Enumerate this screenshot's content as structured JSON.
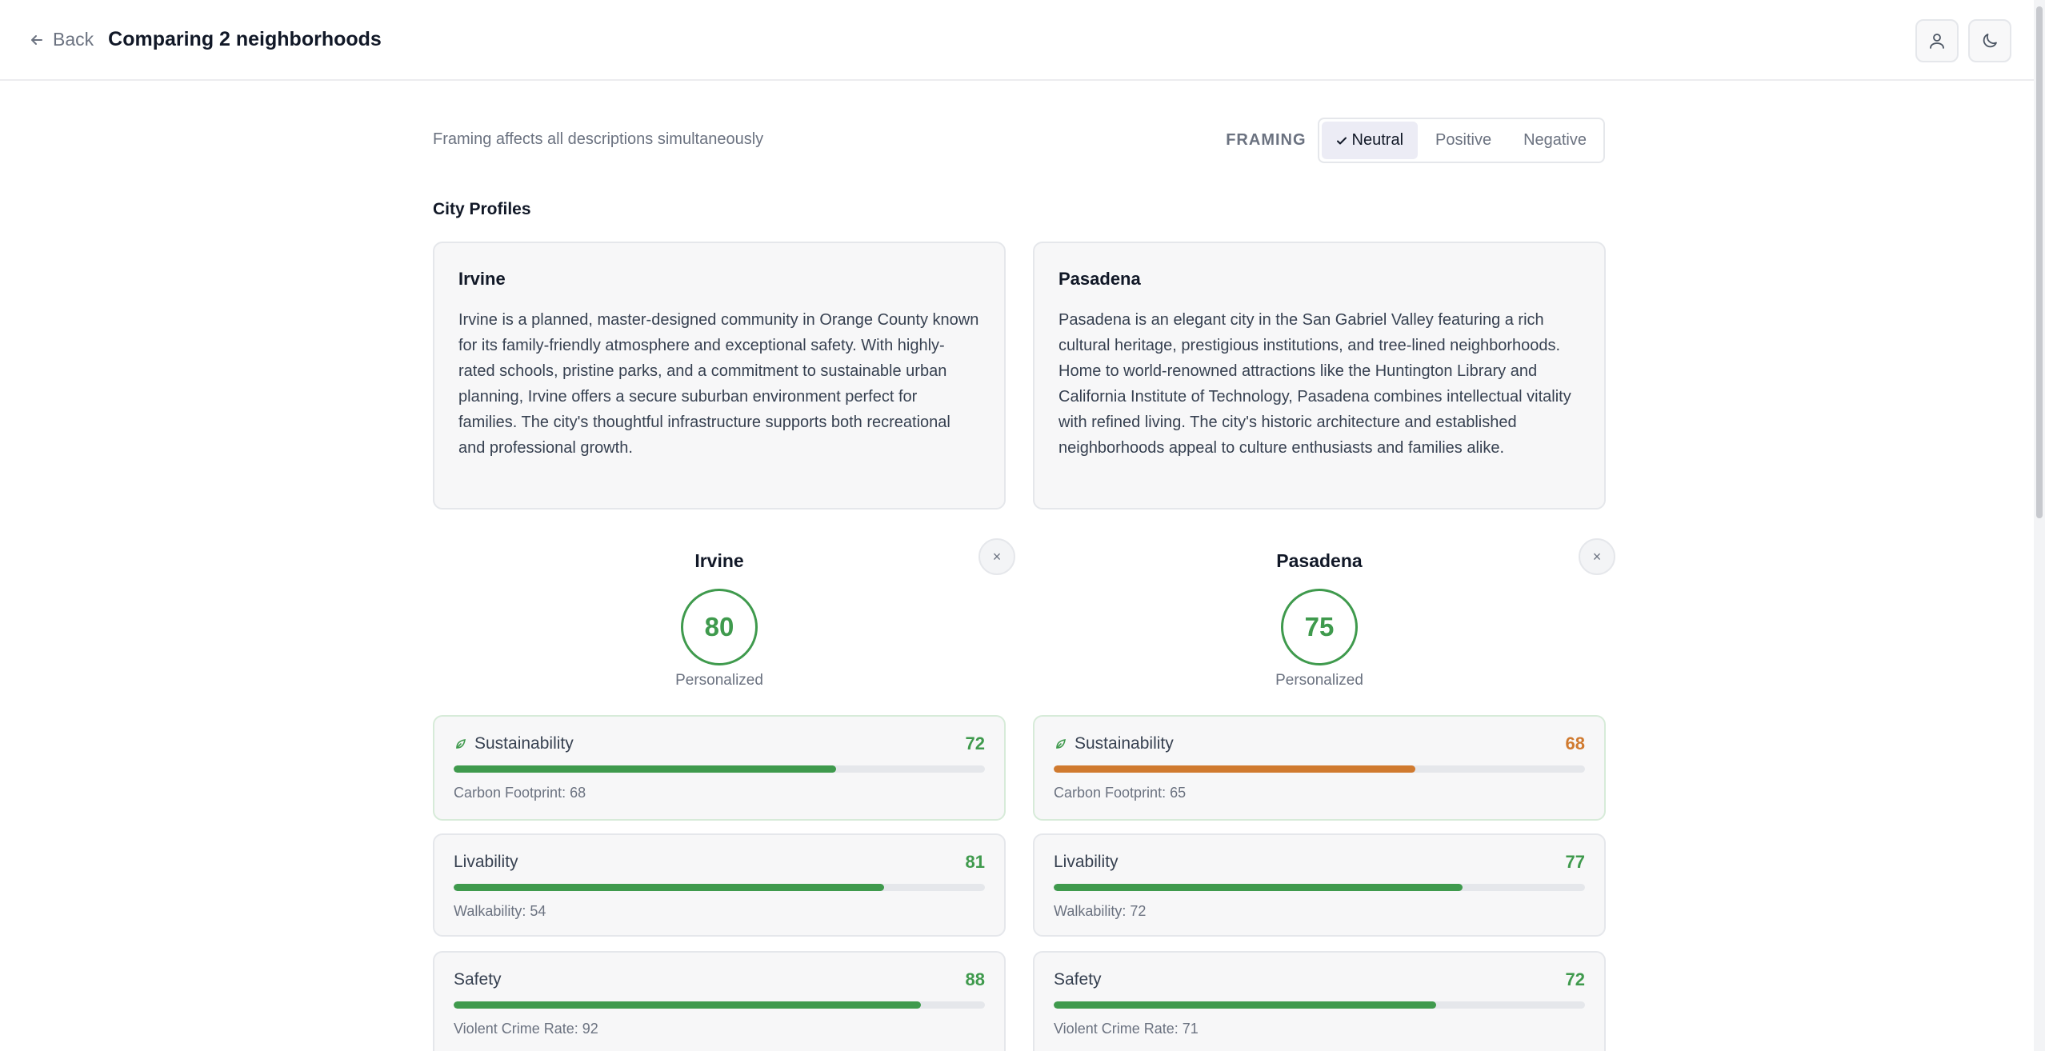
{
  "header": {
    "back_label": "Back",
    "title": "Comparing 2 neighborhoods",
    "actions": [
      "user-icon",
      "moon-icon"
    ]
  },
  "framing": {
    "hint": "Framing affects all descriptions simultaneously",
    "label": "FRAMING",
    "options": [
      "Neutral",
      "Positive",
      "Negative"
    ],
    "selected": "Neutral"
  },
  "profiles_title": "City Profiles",
  "cities": [
    {
      "name": "Irvine",
      "description": "Irvine is a planned, master-designed community in Orange County known for its family-friendly atmosphere and exceptional safety. With highly-rated schools, pristine parks, and a commitment to sustainable urban planning, Irvine offers a secure suburban environment perfect for families. The city's thoughtful infrastructure supports both recreational and professional growth.",
      "score": "80",
      "score_caption": "Personalized",
      "close": "×",
      "metrics": [
        {
          "label": "Sustainability",
          "value": "72",
          "fill": 0.72,
          "sub": "Carbon Footprint: 68",
          "color": "#3f9a4d",
          "icon": "leaf-icon"
        },
        {
          "label": "Livability",
          "value": "81",
          "fill": 0.81,
          "sub": "Walkability: 54",
          "color": "#3f9a4d"
        },
        {
          "label": "Safety",
          "value": "88",
          "fill": 0.88,
          "sub": "Violent Crime Rate: 92",
          "color": "#3f9a4d"
        }
      ]
    },
    {
      "name": "Pasadena",
      "description": "Pasadena is an elegant city in the San Gabriel Valley featuring a rich cultural heritage, prestigious institutions, and tree-lined neighborhoods. Home to world-renowned attractions like the Huntington Library and California Institute of Technology, Pasadena combines intellectual vitality with refined living. The city's historic architecture and established neighborhoods appeal to culture enthusiasts and families alike.",
      "score": "75",
      "score_caption": "Personalized",
      "close": "×",
      "metrics": [
        {
          "label": "Sustainability",
          "value": "68",
          "fill": 0.68,
          "sub": "Carbon Footprint: 65",
          "color": "#d07a2f",
          "icon": "leaf-icon"
        },
        {
          "label": "Livability",
          "value": "77",
          "fill": 0.77,
          "sub": "Walkability: 72",
          "color": "#3f9a4d"
        },
        {
          "label": "Safety",
          "value": "72",
          "fill": 0.72,
          "sub": "Violent Crime Rate: 71",
          "color": "#3f9a4d"
        }
      ]
    }
  ],
  "colors": {
    "good": "#3f9a4d",
    "warn": "#d07a2f"
  }
}
